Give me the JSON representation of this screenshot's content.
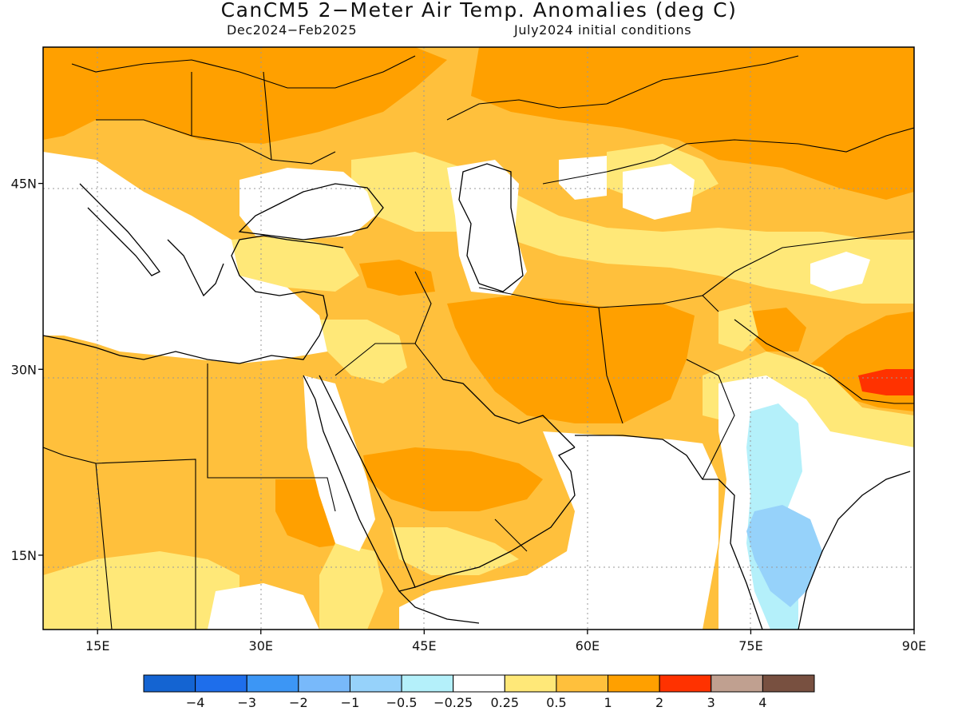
{
  "title": "CanCM5 2−Meter Air Temp. Anomalies (deg C)",
  "subtitle_left": "Dec2024−Feb2025",
  "subtitle_right": "July2024 initial conditions",
  "map": {
    "lon_range": [
      10,
      90
    ],
    "lat_range": [
      9,
      56
    ],
    "lat_ticks": [
      {
        "value": 45,
        "label": "45N"
      },
      {
        "value": 30,
        "label": "30N"
      },
      {
        "value": 15,
        "label": "15N"
      }
    ],
    "lon_ticks": [
      {
        "value": 15,
        "label": "15E"
      },
      {
        "value": 30,
        "label": "30E"
      },
      {
        "value": 45,
        "label": "45E"
      },
      {
        "value": 60,
        "label": "60E"
      },
      {
        "value": 75,
        "label": "75E"
      },
      {
        "value": 90,
        "label": "90E"
      }
    ]
  },
  "colorbar": {
    "colors": [
      "#1464d2",
      "#1e6eeb",
      "#3c96f5",
      "#78b9fa",
      "#96d2fa",
      "#b4f0fa",
      "#ffffff",
      "#ffe878",
      "#ffc03c",
      "#ffa000",
      "#ff3200",
      "#c0a090",
      "#785040"
    ],
    "labels": [
      "−4",
      "−3",
      "−2",
      "−1",
      "−0.5",
      "−0.25",
      "0.25",
      "0.5",
      "1",
      "2",
      "3",
      "4"
    ]
  },
  "colors": {
    "light_yellow": "#ffe878",
    "orange_light": "#ffc03c",
    "orange": "#ffa000",
    "red": "#ff3200",
    "cyan_light": "#b4f0fa",
    "blue_light": "#96d2fa"
  }
}
